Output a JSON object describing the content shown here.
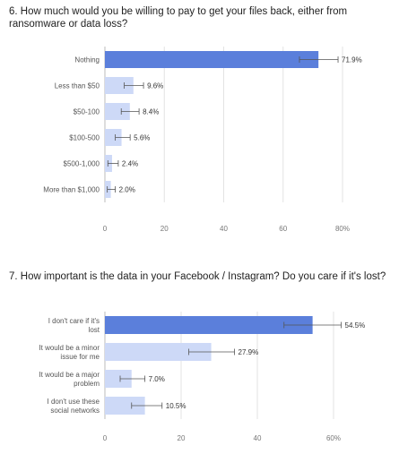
{
  "chart_data": [
    {
      "type": "bar",
      "orientation": "horizontal",
      "title": "6. How much would you be willing to pay to get your files back, either from ransomware or data loss?",
      "categories": [
        "Nothing",
        "Less than $50",
        "$50-100",
        "$100-500",
        "$500-1,000",
        "More than $1,000"
      ],
      "values": [
        71.9,
        9.6,
        8.4,
        5.6,
        2.4,
        2.0
      ],
      "data_labels": [
        "71.9%",
        "9.6%",
        "8.4%",
        "5.6%",
        "2.4%",
        "2.0%"
      ],
      "error_bars": [
        [
          65.5,
          78.5
        ],
        [
          6.5,
          13.0
        ],
        [
          5.5,
          11.5
        ],
        [
          3.5,
          8.5
        ],
        [
          1.0,
          4.5
        ],
        [
          0.8,
          3.5
        ]
      ],
      "xlim": [
        0,
        80
      ],
      "ticks": [
        0,
        20,
        40,
        60,
        80
      ],
      "tick_labels": [
        "0",
        "20",
        "40",
        "60",
        "80%"
      ],
      "highlight_index": 0,
      "colors": {
        "highlight": "#5b7fdb",
        "default": "#cdd9f7"
      },
      "grid": true
    },
    {
      "type": "bar",
      "orientation": "horizontal",
      "title": "7. How important is the data in your Facebook / Instagram? Do you care if it's lost?",
      "categories": [
        "I don't care if it's lost",
        "It would be a minor issue for me",
        "It would be a major problem",
        "I don't use these social networks"
      ],
      "values": [
        54.5,
        27.9,
        7.0,
        10.5
      ],
      "data_labels": [
        "54.5%",
        "27.9%",
        "7.0%",
        "10.5%"
      ],
      "error_bars": [
        [
          47.0,
          62.0
        ],
        [
          22.0,
          34.0
        ],
        [
          4.0,
          10.5
        ],
        [
          7.0,
          15.0
        ]
      ],
      "xlim": [
        0,
        60
      ],
      "ticks": [
        0,
        20,
        40,
        60
      ],
      "tick_labels": [
        "0",
        "20",
        "40",
        "60%"
      ],
      "highlight_index": 0,
      "colors": {
        "highlight": "#5b7fdb",
        "default": "#cdd9f7"
      },
      "grid": true
    }
  ]
}
